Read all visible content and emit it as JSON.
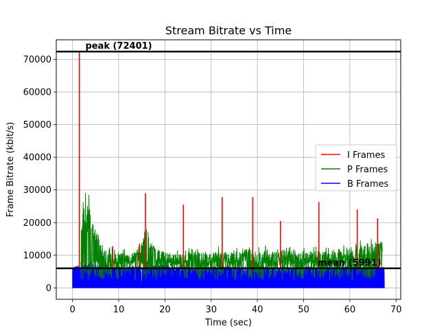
{
  "chart_data": {
    "type": "line",
    "title": "Stream Bitrate vs Time",
    "xlabel": "Time (sec)",
    "ylabel": "Frame Bitrate (kbit/s)",
    "xlim": [
      -3.5,
      71
    ],
    "ylim": [
      -3500,
      76000
    ],
    "xticks": [
      0,
      10,
      20,
      30,
      40,
      50,
      60,
      70
    ],
    "yticks": [
      0,
      10000,
      20000,
      30000,
      40000,
      50000,
      60000,
      70000
    ],
    "grid": true,
    "legend": {
      "placement": "center-right"
    },
    "series": [
      {
        "name": "I Frames",
        "color": "#ff0000",
        "x": [
          1.5,
          8.7,
          14.5,
          15.8,
          24.0,
          32.4,
          39.0,
          45.0,
          53.3,
          61.6,
          66.0
        ],
        "y": [
          72401,
          12800,
          13500,
          29000,
          25500,
          27800,
          27800,
          20500,
          26300,
          24000,
          21300
        ]
      },
      {
        "name": "P Frames",
        "color": "#008000",
        "x": [
          1.8,
          2.3,
          2.8,
          3.1,
          3.6,
          4.2,
          5.0,
          6.0,
          7.0,
          8.0,
          9.0,
          10.0,
          11.0,
          12.0,
          13.0,
          14.0,
          15.0,
          16.0,
          16.5,
          17.0,
          18.0,
          19.0,
          20.0,
          22.0,
          24.0,
          26.0,
          28.0,
          30.0,
          32.0,
          34.0,
          36.0,
          38.0,
          40.0,
          42.0,
          44.0,
          46.0,
          48.0,
          50.0,
          52.0,
          54.0,
          56.0,
          58.0,
          60.0,
          62.0,
          64.0,
          66.0,
          67.0
        ],
        "y": [
          15500,
          21000,
          24500,
          21500,
          23000,
          18500,
          16000,
          12000,
          11000,
          10500,
          9500,
          10000,
          9800,
          9000,
          10000,
          11500,
          12500,
          17500,
          15000,
          13000,
          11000,
          10500,
          10000,
          9500,
          9500,
          10500,
          10000,
          9500,
          10500,
          9800,
          10500,
          11000,
          10000,
          10500,
          10200,
          10800,
          10500,
          10000,
          10300,
          10000,
          10500,
          11000,
          11500,
          12000,
          12500,
          12500,
          13000
        ]
      },
      {
        "name": "B Frames",
        "color": "#0000ff",
        "x": [
          0,
          2,
          3,
          5,
          10,
          15,
          20,
          25,
          30,
          35,
          40,
          45,
          50,
          55,
          60,
          65,
          67.5
        ],
        "y": [
          6000,
          6500,
          7200,
          6500,
          6000,
          6200,
          6500,
          6000,
          6200,
          6000,
          6300,
          5800,
          6000,
          6100,
          6200,
          6500,
          6000
        ]
      }
    ],
    "reference_lines": [
      {
        "label": "peak (72401)",
        "value": 72401
      },
      {
        "label": "mean (5991)",
        "value": 5991
      }
    ]
  }
}
